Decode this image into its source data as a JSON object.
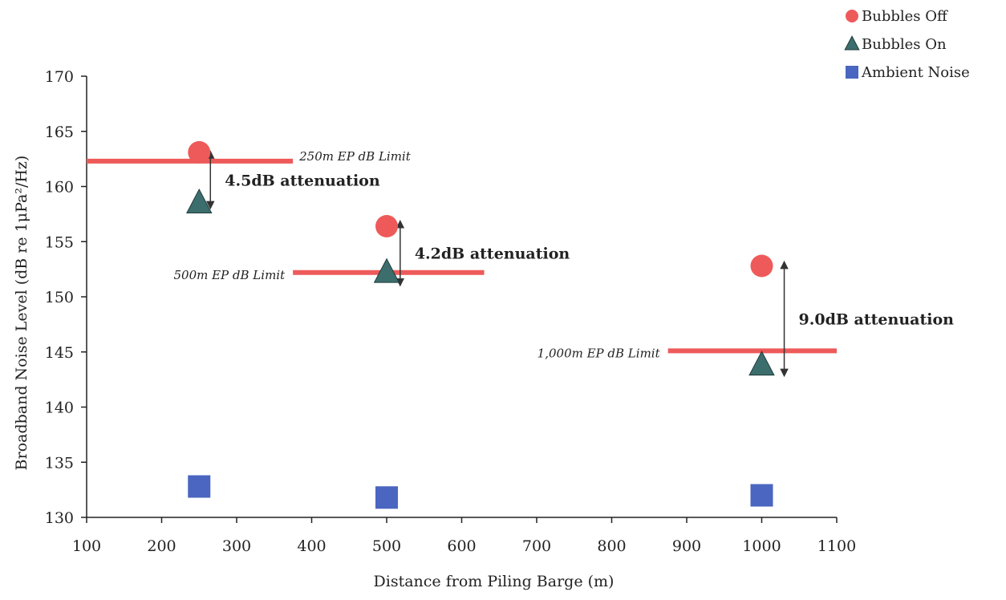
{
  "chart_data": {
    "type": "scatter",
    "xlabel": "Distance from Piling Barge (m)",
    "ylabel": "Broadband Noise Level (dB re 1μPa²/Hz)",
    "xlim": [
      100,
      1100
    ],
    "ylim": [
      130,
      170
    ],
    "xticks": [
      "100",
      "200",
      "300",
      "400",
      "500",
      "600",
      "700",
      "800",
      "900",
      "1000",
      "1100"
    ],
    "yticks": [
      "130",
      "135",
      "140",
      "145",
      "150",
      "155",
      "160",
      "165",
      "170"
    ],
    "grid": false,
    "legend_position": "top-right",
    "series": [
      {
        "name": "Bubbles Off",
        "marker": "circle",
        "color": "#ee5a5a",
        "points": [
          {
            "x": 250,
            "y": 163.1
          },
          {
            "x": 500,
            "y": 156.4
          },
          {
            "x": 1000,
            "y": 152.8
          }
        ]
      },
      {
        "name": "Bubbles On",
        "marker": "triangle",
        "color": "#3d6e6e",
        "points": [
          {
            "x": 250,
            "y": 158.5
          },
          {
            "x": 500,
            "y": 152.2
          },
          {
            "x": 1000,
            "y": 143.8
          }
        ]
      },
      {
        "name": "Ambient Noise",
        "marker": "square",
        "color": "#4a66c0",
        "points": [
          {
            "x": 250,
            "y": 132.8
          },
          {
            "x": 500,
            "y": 131.8
          },
          {
            "x": 1000,
            "y": 132.0
          }
        ]
      }
    ],
    "limit_lines": [
      {
        "label": "250m EP dB Limit",
        "y": 162.3,
        "x_start": 100,
        "x_end": 375,
        "label_side": "right"
      },
      {
        "label": "500m EP dB Limit",
        "y": 152.2,
        "x_start": 375,
        "x_end": 630,
        "label_side": "left"
      },
      {
        "label": "1,000m EP dB Limit",
        "y": 145.1,
        "x_start": 875,
        "x_end": 1100,
        "label_side": "left"
      }
    ],
    "attenuations": [
      {
        "label": "4.5dB attenuation",
        "x": 265,
        "y_top": 162.9,
        "y_bottom": 158.3
      },
      {
        "label": "4.2dB attenuation",
        "x": 518,
        "y_top": 156.6,
        "y_bottom": 151.3
      },
      {
        "label": "9.0dB attenuation",
        "x": 1030,
        "y_top": 152.9,
        "y_bottom": 143.1
      }
    ],
    "colors": {
      "limit_line": "#ee5a5a",
      "axis": "#222222",
      "arrow": "#333333"
    }
  }
}
